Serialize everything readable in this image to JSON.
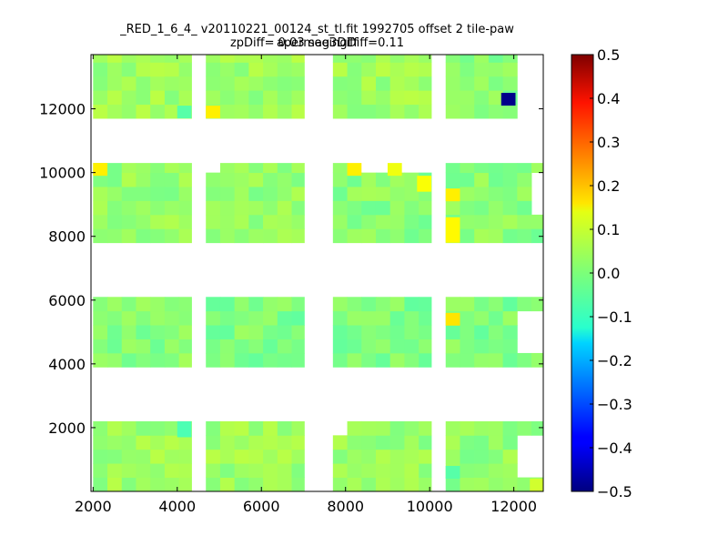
{
  "chart_data": {
    "type": "heatmap",
    "title": "_RED_1_6_4_ v20110221_00124_st_tl.fit 1992705 offset 2 tile-paw apermag3Diff",
    "subtitle": "zpDiff= 0.03 seeingDiff=0.11",
    "xlabel": "",
    "ylabel": "",
    "xlim": [
      1950,
      12700
    ],
    "ylim": [
      0,
      13700
    ],
    "x_ticks": [
      "2000",
      "4000",
      "6000",
      "8000",
      "10000",
      "12000"
    ],
    "x_tick_values": [
      2000,
      4000,
      6000,
      8000,
      10000,
      12000
    ],
    "y_ticks": [
      "2000",
      "4000",
      "6000",
      "8000",
      "10000",
      "12000"
    ],
    "y_tick_values": [
      2000,
      4000,
      6000,
      8000,
      10000,
      12000
    ],
    "cell_size": [
      340,
      440
    ],
    "colormap": "jet",
    "colorbar": {
      "range": [
        -0.5,
        0.5
      ],
      "ticks": [
        "0.5",
        "0.4",
        "0.3",
        "0.2",
        "0.1",
        "0.0",
        "−0.1",
        "−0.2",
        "−0.3",
        "−0.4",
        "−0.5"
      ],
      "tick_values": [
        0.5,
        0.4,
        0.3,
        0.2,
        0.1,
        0.0,
        -0.1,
        -0.2,
        -0.3,
        -0.4,
        -0.5
      ]
    },
    "blocks": [
      {
        "x": [
          2000,
          4340
        ],
        "y": [
          0,
          2200
        ],
        "value": 0.03
      },
      {
        "x": [
          4680,
          7020
        ],
        "y": [
          0,
          2200
        ],
        "value": 0.03
      },
      {
        "x": [
          7700,
          10040
        ],
        "y": [
          0,
          2200
        ],
        "value": 0.02
      },
      {
        "x": [
          10380,
          12720
        ],
        "y": [
          0,
          2200
        ],
        "value": 0.02
      },
      {
        "x": [
          2000,
          4340
        ],
        "y": [
          3900,
          6100
        ],
        "value": 0.01
      },
      {
        "x": [
          4680,
          7020
        ],
        "y": [
          3900,
          6100
        ],
        "value": 0.0
      },
      {
        "x": [
          7700,
          10040
        ],
        "y": [
          3900,
          6100
        ],
        "value": 0.0
      },
      {
        "x": [
          10380,
          12720
        ],
        "y": [
          3900,
          6100
        ],
        "value": 0.0
      },
      {
        "x": [
          2000,
          4340
        ],
        "y": [
          7800,
          10300
        ],
        "value": 0.02
      },
      {
        "x": [
          4680,
          7020
        ],
        "y": [
          7800,
          10300
        ],
        "value": 0.02
      },
      {
        "x": [
          7700,
          10040
        ],
        "y": [
          7800,
          10300
        ],
        "value": 0.01
      },
      {
        "x": [
          10380,
          12720
        ],
        "y": [
          7800,
          10300
        ],
        "value": 0.01
      },
      {
        "x": [
          2000,
          4340
        ],
        "y": [
          11700,
          13700
        ],
        "value": 0.03
      },
      {
        "x": [
          4680,
          7020
        ],
        "y": [
          11700,
          13700
        ],
        "value": 0.03
      },
      {
        "x": [
          7700,
          10040
        ],
        "y": [
          11700,
          13700
        ],
        "value": 0.03
      },
      {
        "x": [
          10380,
          12720
        ],
        "y": [
          11700,
          13700
        ],
        "value": 0.01
      }
    ],
    "masked": [
      {
        "x": [
          4340,
          4680
        ],
        "y": [
          11700,
          13700
        ]
      },
      {
        "x": [
          4340,
          4680
        ],
        "y": [
          9900,
          10300
        ]
      },
      {
        "x": [
          7700,
          8040
        ],
        "y": [
          1700,
          2200
        ]
      },
      {
        "x": [
          10040,
          10380
        ],
        "y": [
          11700,
          13700
        ]
      },
      {
        "x": [
          10040,
          10380
        ],
        "y": [
          7800,
          10300
        ]
      },
      {
        "x": [
          10040,
          10380
        ],
        "y": [
          3900,
          6100
        ]
      },
      {
        "x": [
          10040,
          10380
        ],
        "y": [
          0,
          2200
        ]
      },
      {
        "x": [
          12040,
          12720
        ],
        "y": [
          11700,
          13700
        ]
      },
      {
        "x": [
          12380,
          12720
        ],
        "y": [
          8800,
          9900
        ]
      },
      {
        "x": [
          12040,
          12720
        ],
        "y": [
          4300,
          5500
        ]
      },
      {
        "x": [
          12040,
          12720
        ],
        "y": [
          300,
          1700
        ]
      },
      {
        "x": [
          8040,
          10040
        ],
        "y": [
          9900,
          10300
        ]
      },
      {
        "x": [
          4680,
          5020
        ],
        "y": [
          9900,
          10300
        ]
      },
      {
        "x": [
          7020,
          7700
        ],
        "y": [
          0,
          13700
        ]
      }
    ],
    "highlights": [
      {
        "x": [
          11700,
          12040
        ],
        "y": [
          12100,
          12500
        ],
        "value": -0.49
      },
      {
        "x": [
          4680,
          5020
        ],
        "y": [
          11700,
          12100
        ],
        "value": 0.14
      },
      {
        "x": [
          2000,
          2340
        ],
        "y": [
          9900,
          10300
        ],
        "value": 0.14
      },
      {
        "x": [
          8040,
          8380
        ],
        "y": [
          9900,
          10300
        ],
        "value": 0.14
      },
      {
        "x": [
          9000,
          9340
        ],
        "y": [
          9900,
          10300
        ],
        "value": 0.11
      },
      {
        "x": [
          9700,
          10040
        ],
        "y": [
          9400,
          9900
        ],
        "value": 0.12
      },
      {
        "x": [
          10380,
          10720
        ],
        "y": [
          9100,
          9500
        ],
        "value": 0.14
      },
      {
        "x": [
          10380,
          10720
        ],
        "y": [
          7800,
          8600
        ],
        "value": 0.13
      },
      {
        "x": [
          10380,
          10720
        ],
        "y": [
          5200,
          5600
        ],
        "value": 0.15
      },
      {
        "x": [
          10380,
          10720
        ],
        "y": [
          400,
          800
        ],
        "value": -0.04
      },
      {
        "x": [
          4000,
          4340
        ],
        "y": [
          11700,
          12100
        ],
        "value": -0.04
      },
      {
        "x": [
          4000,
          4340
        ],
        "y": [
          1700,
          2200
        ],
        "value": -0.05
      },
      {
        "x": [
          12380,
          12720
        ],
        "y": [
          0,
          400
        ],
        "value": 0.08
      }
    ]
  }
}
